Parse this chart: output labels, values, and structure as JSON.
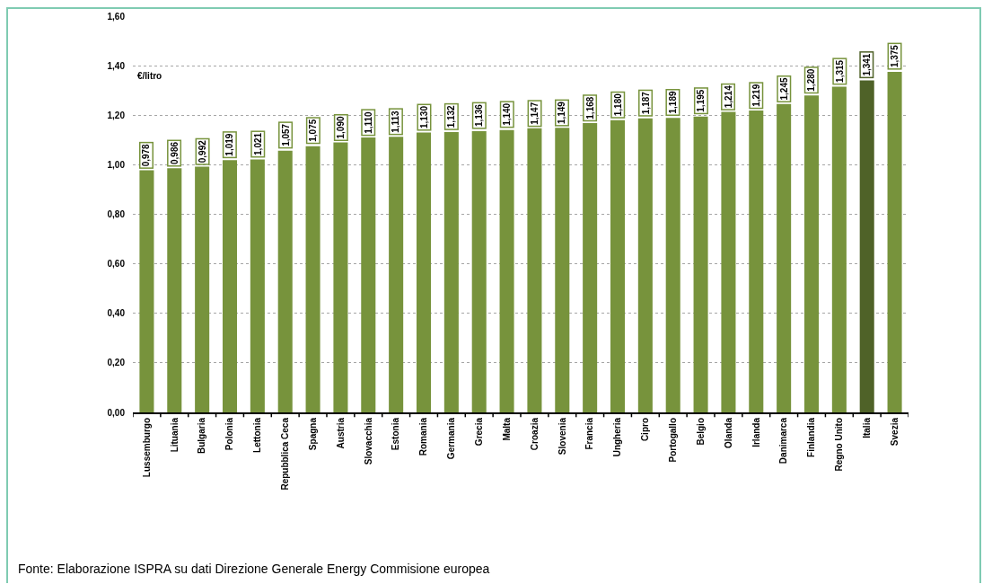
{
  "chart_data": {
    "type": "bar",
    "categories": [
      "Lussemburgo",
      "Lituania",
      "Bulgaria",
      "Polonia",
      "Lettonia",
      "Repubblica Ceca",
      "Spagna",
      "Austria",
      "Slovacchia",
      "Estonia",
      "Romania",
      "Germania",
      "Grecia",
      "Malta",
      "Croazia",
      "Slovenia",
      "Francia",
      "Ungheria",
      "Cipro",
      "Portogallo",
      "Belgio",
      "Olanda",
      "Irlanda",
      "Danimarca",
      "Finlandia",
      "Regno Unito",
      "Italia",
      "Svezia"
    ],
    "values": [
      0.978,
      0.986,
      0.992,
      1.019,
      1.021,
      1.057,
      1.075,
      1.09,
      1.11,
      1.113,
      1.13,
      1.132,
      1.136,
      1.14,
      1.147,
      1.149,
      1.168,
      1.18,
      1.187,
      1.189,
      1.195,
      1.214,
      1.219,
      1.245,
      1.28,
      1.315,
      1.341,
      1.375
    ],
    "value_labels": [
      "0,978",
      "0,986",
      "0,992",
      "1,019",
      "1,021",
      "1,057",
      "1,075",
      "1,090",
      "1,110",
      "1,113",
      "1,130",
      "1,132",
      "1,136",
      "1,140",
      "1,147",
      "1,149",
      "1,168",
      "1,180",
      "1,187",
      "1,189",
      "1,195",
      "1,214",
      "1,219",
      "1,245",
      "1,280",
      "1,315",
      "1,341",
      "1,375"
    ],
    "colors": [
      "#77933c",
      "#77933c",
      "#77933c",
      "#77933c",
      "#77933c",
      "#77933c",
      "#77933c",
      "#77933c",
      "#77933c",
      "#77933c",
      "#77933c",
      "#77933c",
      "#77933c",
      "#77933c",
      "#77933c",
      "#77933c",
      "#77933c",
      "#77933c",
      "#77933c",
      "#77933c",
      "#77933c",
      "#77933c",
      "#77933c",
      "#77933c",
      "#77933c",
      "#77933c",
      "#4f6228",
      "#77933c"
    ],
    "ylabel": "€/litro",
    "ylim": [
      0,
      1.6
    ],
    "yticks": [
      {
        "value": 0,
        "label": "0,00"
      },
      {
        "value": 0.2,
        "label": "0,20"
      },
      {
        "value": 0.4,
        "label": "0,40"
      },
      {
        "value": 0.6,
        "label": "0,60"
      },
      {
        "value": 0.8,
        "label": "0,80"
      },
      {
        "value": 1.0,
        "label": "1,00"
      },
      {
        "value": 1.2,
        "label": "1,20"
      },
      {
        "value": 1.4,
        "label": "1,40"
      },
      {
        "value": 1.6,
        "label": "1,60"
      }
    ],
    "grid": "y",
    "annotations": [
      "Fonte: Elaborazione ISPRA su dati Direzione Generale Energy Commisione europea"
    ]
  }
}
